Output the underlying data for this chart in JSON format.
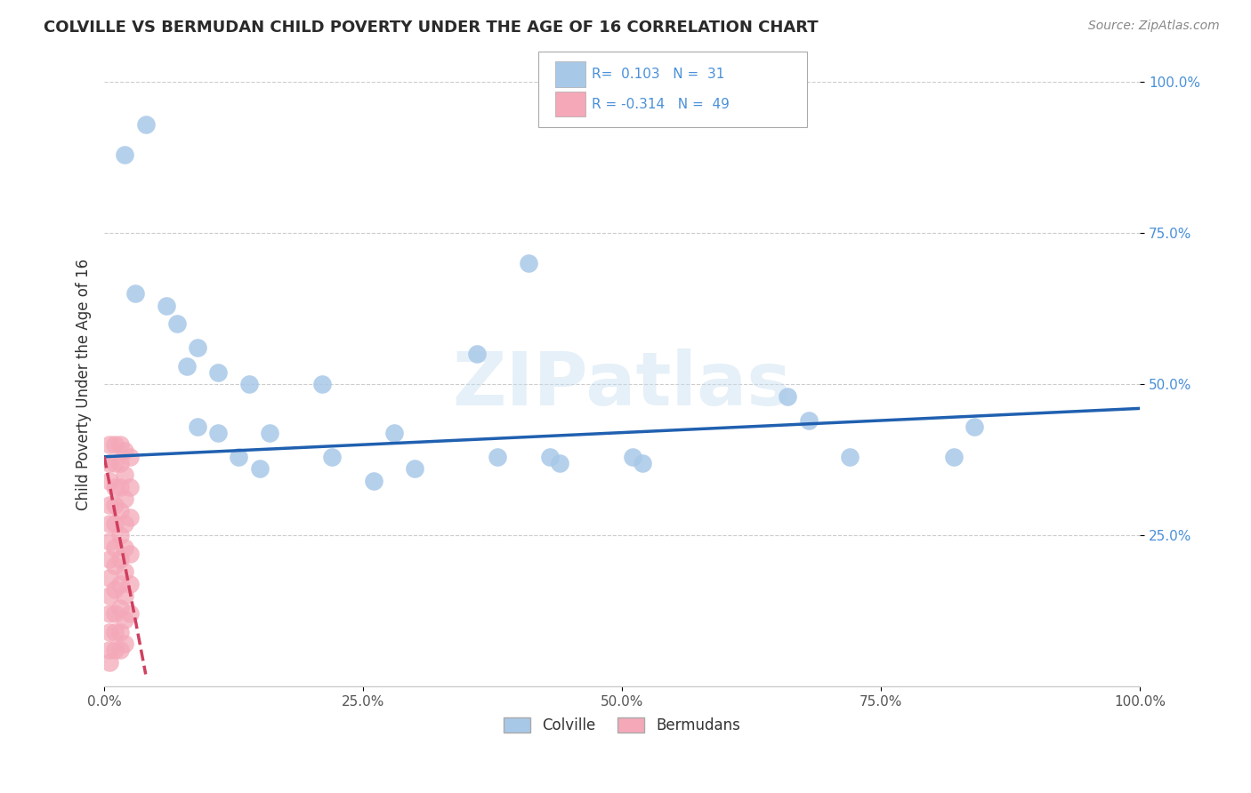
{
  "title": "COLVILLE VS BERMUDAN CHILD POVERTY UNDER THE AGE OF 16 CORRELATION CHART",
  "source": "Source: ZipAtlas.com",
  "ylabel": "Child Poverty Under the Age of 16",
  "xlim": [
    0,
    1.0
  ],
  "ylim": [
    0,
    1.0
  ],
  "xtick_labels": [
    "0.0%",
    "25.0%",
    "50.0%",
    "75.0%",
    "100.0%"
  ],
  "xtick_vals": [
    0.0,
    0.25,
    0.5,
    0.75,
    1.0
  ],
  "ytick_labels": [
    "25.0%",
    "50.0%",
    "75.0%",
    "100.0%"
  ],
  "ytick_vals": [
    0.25,
    0.5,
    0.75,
    1.0
  ],
  "colville_color": "#a8c8e8",
  "bermudan_color": "#f4a8b8",
  "line_color_colville": "#2060b0",
  "line_color_bermudan": "#d04060",
  "watermark_text": "ZIPatlas",
  "colville_points": [
    [
      0.02,
      0.88
    ],
    [
      0.04,
      0.93
    ],
    [
      0.03,
      0.65
    ],
    [
      0.06,
      0.63
    ],
    [
      0.07,
      0.6
    ],
    [
      0.09,
      0.56
    ],
    [
      0.08,
      0.53
    ],
    [
      0.11,
      0.52
    ],
    [
      0.14,
      0.5
    ],
    [
      0.09,
      0.43
    ],
    [
      0.11,
      0.42
    ],
    [
      0.16,
      0.42
    ],
    [
      0.13,
      0.38
    ],
    [
      0.15,
      0.36
    ],
    [
      0.21,
      0.5
    ],
    [
      0.22,
      0.38
    ],
    [
      0.26,
      0.34
    ],
    [
      0.28,
      0.42
    ],
    [
      0.3,
      0.36
    ],
    [
      0.36,
      0.55
    ],
    [
      0.38,
      0.38
    ],
    [
      0.41,
      0.7
    ],
    [
      0.43,
      0.38
    ],
    [
      0.44,
      0.37
    ],
    [
      0.51,
      0.38
    ],
    [
      0.52,
      0.37
    ],
    [
      0.66,
      0.48
    ],
    [
      0.68,
      0.44
    ],
    [
      0.72,
      0.38
    ],
    [
      0.82,
      0.38
    ],
    [
      0.84,
      0.43
    ]
  ],
  "bermudan_points": [
    [
      0.005,
      0.4
    ],
    [
      0.005,
      0.37
    ],
    [
      0.005,
      0.34
    ],
    [
      0.005,
      0.3
    ],
    [
      0.005,
      0.27
    ],
    [
      0.005,
      0.24
    ],
    [
      0.005,
      0.21
    ],
    [
      0.005,
      0.18
    ],
    [
      0.005,
      0.15
    ],
    [
      0.005,
      0.12
    ],
    [
      0.005,
      0.09
    ],
    [
      0.005,
      0.06
    ],
    [
      0.005,
      0.04
    ],
    [
      0.01,
      0.4
    ],
    [
      0.01,
      0.37
    ],
    [
      0.01,
      0.33
    ],
    [
      0.01,
      0.3
    ],
    [
      0.01,
      0.27
    ],
    [
      0.01,
      0.23
    ],
    [
      0.01,
      0.2
    ],
    [
      0.01,
      0.16
    ],
    [
      0.01,
      0.12
    ],
    [
      0.01,
      0.09
    ],
    [
      0.01,
      0.06
    ],
    [
      0.015,
      0.4
    ],
    [
      0.015,
      0.37
    ],
    [
      0.015,
      0.33
    ],
    [
      0.015,
      0.29
    ],
    [
      0.015,
      0.25
    ],
    [
      0.015,
      0.21
    ],
    [
      0.015,
      0.17
    ],
    [
      0.015,
      0.13
    ],
    [
      0.015,
      0.09
    ],
    [
      0.015,
      0.06
    ],
    [
      0.02,
      0.39
    ],
    [
      0.02,
      0.35
    ],
    [
      0.02,
      0.31
    ],
    [
      0.02,
      0.27
    ],
    [
      0.02,
      0.23
    ],
    [
      0.02,
      0.19
    ],
    [
      0.02,
      0.15
    ],
    [
      0.02,
      0.11
    ],
    [
      0.02,
      0.07
    ],
    [
      0.025,
      0.38
    ],
    [
      0.025,
      0.33
    ],
    [
      0.025,
      0.28
    ],
    [
      0.025,
      0.22
    ],
    [
      0.025,
      0.17
    ],
    [
      0.025,
      0.12
    ]
  ]
}
